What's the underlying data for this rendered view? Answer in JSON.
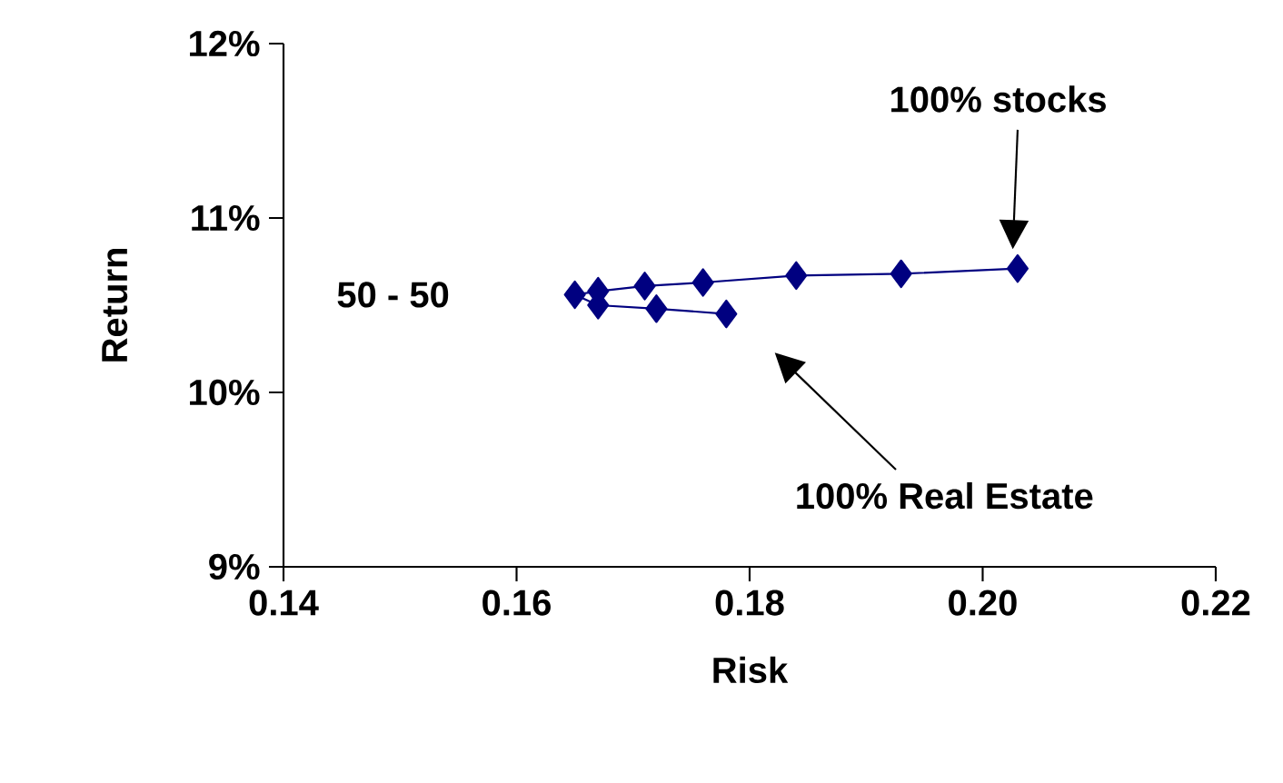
{
  "chart_data": {
    "type": "line",
    "xlabel": "Risk",
    "ylabel": "Return",
    "x": [
      0.203,
      0.193,
      0.184,
      0.176,
      0.171,
      0.167,
      0.165,
      0.167,
      0.172,
      0.178
    ],
    "values": [
      10.71,
      10.68,
      10.67,
      10.63,
      10.61,
      10.58,
      10.56,
      10.5,
      10.48,
      10.45
    ],
    "color": "#000080",
    "marker": "diamond",
    "line_style": "solid",
    "xlim": [
      0.14,
      0.22
    ],
    "xticks": [
      {
        "value": 0.14,
        "label": "0.14"
      },
      {
        "value": 0.16,
        "label": "0.16"
      },
      {
        "value": 0.18,
        "label": "0.18"
      },
      {
        "value": 0.2,
        "label": "0.20"
      },
      {
        "value": 0.22,
        "label": "0.22"
      }
    ],
    "ylim": [
      9,
      12
    ],
    "yticks": [
      {
        "value": 9,
        "label": "9%"
      },
      {
        "value": 10,
        "label": "10%"
      },
      {
        "value": 11,
        "label": "11%"
      },
      {
        "value": 12,
        "label": "12%"
      }
    ],
    "annotations": [
      "100% stocks",
      "50 - 50",
      "100% Real Estate"
    ]
  }
}
